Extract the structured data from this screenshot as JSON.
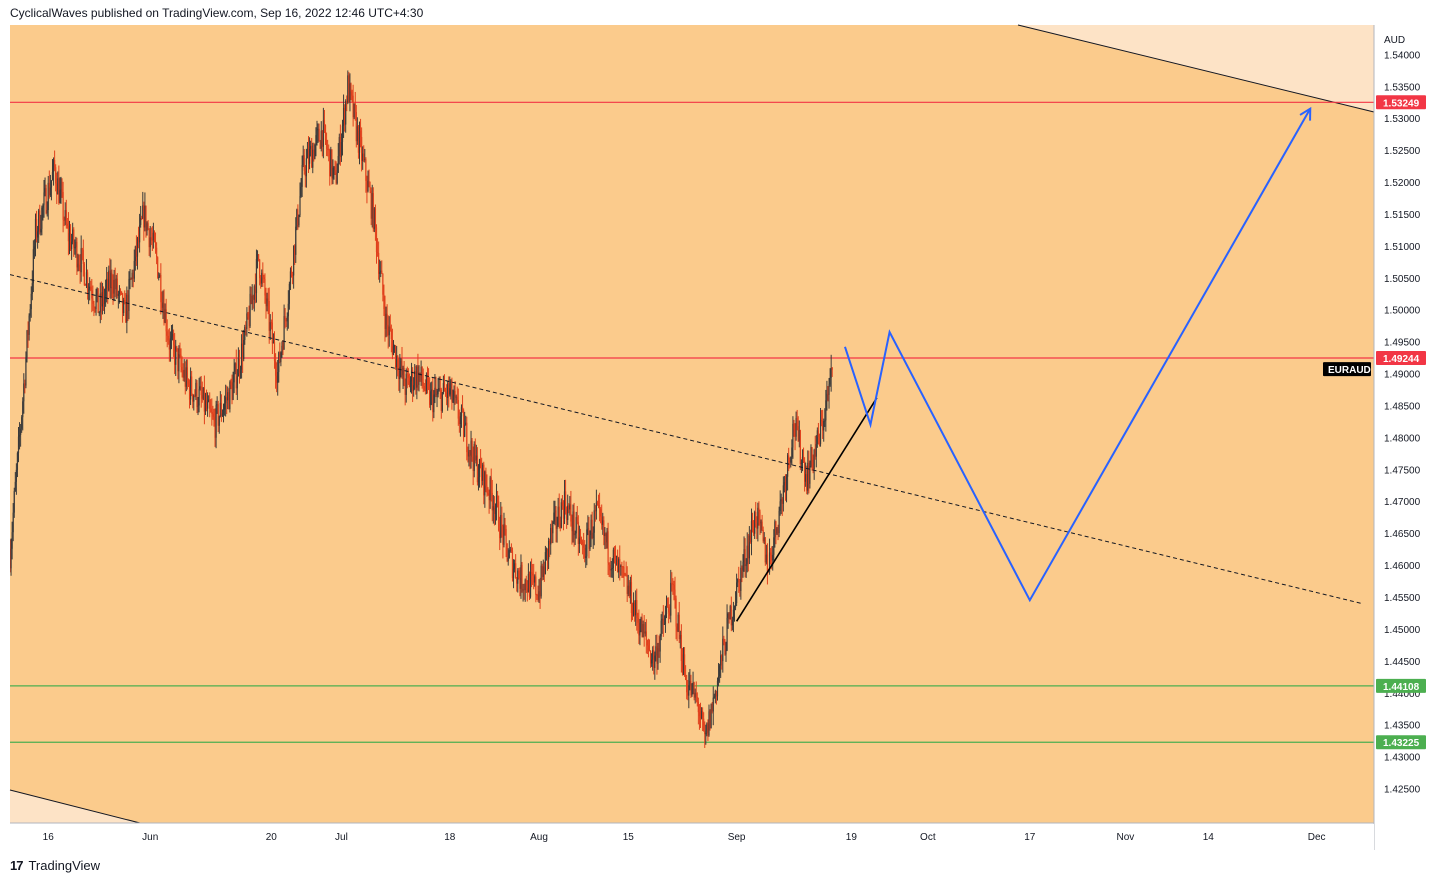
{
  "header": {
    "publisher": "CyclicalWaves published on TradingView.com, Sep 16, 2022 12:46 UTC+4:30"
  },
  "footer": {
    "brand": "TradingView"
  },
  "chart_data": {
    "type": "candlestick",
    "symbol": "EURAUD",
    "currency": "AUD",
    "y_ticks": [
      "1.54000",
      "1.53500",
      "1.53000",
      "1.52500",
      "1.52000",
      "1.51500",
      "1.51000",
      "1.50500",
      "1.50000",
      "1.49500",
      "1.49000",
      "1.48500",
      "1.48000",
      "1.47500",
      "1.47000",
      "1.46500",
      "1.46000",
      "1.45500",
      "1.45000",
      "1.44500",
      "1.44000",
      "1.43500",
      "1.43000",
      "1.42500"
    ],
    "ylim": [
      1.4196,
      1.5446
    ],
    "x_ticks": [
      {
        "label": "16",
        "date": "2022-05-16"
      },
      {
        "label": "Jun",
        "date": "2022-06-01"
      },
      {
        "label": "20",
        "date": "2022-06-20"
      },
      {
        "label": "Jul",
        "date": "2022-07-01"
      },
      {
        "label": "18",
        "date": "2022-07-18"
      },
      {
        "label": "Aug",
        "date": "2022-08-01"
      },
      {
        "label": "15",
        "date": "2022-08-15"
      },
      {
        "label": "Sep",
        "date": "2022-09-01"
      },
      {
        "label": "19",
        "date": "2022-09-19"
      },
      {
        "label": "Oct",
        "date": "2022-10-01"
      },
      {
        "label": "17",
        "date": "2022-10-17"
      },
      {
        "label": "Nov",
        "date": "2022-11-01"
      },
      {
        "label": "14",
        "date": "2022-11-14"
      },
      {
        "label": "Dec",
        "date": "2022-12-01"
      }
    ],
    "x_range": [
      "2022-05-10",
      "2022-12-10"
    ],
    "price_badges": [
      {
        "label": "1.53249",
        "value": 1.53249,
        "color": "#f23645"
      },
      {
        "label": "1.49244",
        "value": 1.49244,
        "color": "#f23645"
      },
      {
        "label": "1.44108",
        "value": 1.44108,
        "color": "#4caf50"
      },
      {
        "label": "1.43225",
        "value": 1.43225,
        "color": "#4caf50"
      }
    ],
    "symbol_badge": {
      "label": "EURAUD",
      "value": 1.4907,
      "color": "#000000"
    },
    "horizontal_lines": [
      {
        "value": 1.53249,
        "color": "#f23645"
      },
      {
        "value": 1.49244,
        "color": "#f23645"
      },
      {
        "value": 1.44108,
        "color": "#4caf50"
      },
      {
        "value": 1.43225,
        "color": "#4caf50"
      }
    ],
    "close_path": [
      [
        "2022-05-10",
        1.462
      ],
      [
        "2022-05-12",
        1.486
      ],
      [
        "2022-05-14",
        1.512
      ],
      [
        "2022-05-17",
        1.522
      ],
      [
        "2022-05-19",
        1.512
      ],
      [
        "2022-05-21",
        1.508
      ],
      [
        "2022-05-24",
        1.5
      ],
      [
        "2022-05-26",
        1.505
      ],
      [
        "2022-05-28",
        1.499
      ],
      [
        "2022-05-31",
        1.515
      ],
      [
        "2022-06-02",
        1.508
      ],
      [
        "2022-06-04",
        1.495
      ],
      [
        "2022-06-07",
        1.488
      ],
      [
        "2022-06-09",
        1.486
      ],
      [
        "2022-06-11",
        1.482
      ],
      [
        "2022-06-14",
        1.488
      ],
      [
        "2022-06-16",
        1.496
      ],
      [
        "2022-06-18",
        1.508
      ],
      [
        "2022-06-21",
        1.49
      ],
      [
        "2022-06-23",
        1.505
      ],
      [
        "2022-06-25",
        1.522
      ],
      [
        "2022-06-28",
        1.528
      ],
      [
        "2022-06-30",
        1.52
      ],
      [
        "2022-07-02",
        1.535
      ],
      [
        "2022-07-04",
        1.525
      ],
      [
        "2022-07-06",
        1.515
      ],
      [
        "2022-07-08",
        1.498
      ],
      [
        "2022-07-11",
        1.488
      ],
      [
        "2022-07-13",
        1.49
      ],
      [
        "2022-07-15",
        1.486
      ],
      [
        "2022-07-18",
        1.487
      ],
      [
        "2022-07-20",
        1.482
      ],
      [
        "2022-07-22",
        1.476
      ],
      [
        "2022-07-25",
        1.47
      ],
      [
        "2022-07-27",
        1.462
      ],
      [
        "2022-07-29",
        1.458
      ],
      [
        "2022-08-01",
        1.456
      ],
      [
        "2022-08-03",
        1.465
      ],
      [
        "2022-08-05",
        1.47
      ],
      [
        "2022-08-08",
        1.462
      ],
      [
        "2022-08-10",
        1.468
      ],
      [
        "2022-08-12",
        1.462
      ],
      [
        "2022-08-15",
        1.456
      ],
      [
        "2022-08-17",
        1.45
      ],
      [
        "2022-08-19",
        1.445
      ],
      [
        "2022-08-22",
        1.456
      ],
      [
        "2022-08-24",
        1.442
      ],
      [
        "2022-08-26",
        1.438
      ],
      [
        "2022-08-27",
        1.432
      ],
      [
        "2022-08-29",
        1.442
      ],
      [
        "2022-08-31",
        1.452
      ],
      [
        "2022-09-02",
        1.46
      ],
      [
        "2022-09-04",
        1.468
      ],
      [
        "2022-09-06",
        1.46
      ],
      [
        "2022-09-08",
        1.47
      ],
      [
        "2022-09-10",
        1.482
      ],
      [
        "2022-09-12",
        1.474
      ],
      [
        "2022-09-14",
        1.48
      ],
      [
        "2022-09-16",
        1.49
      ]
    ],
    "trend_lines": [
      {
        "from": [
          "2022-05-10",
          1.5055
        ],
        "to": [
          "2022-12-08",
          1.454
        ],
        "style": "dashed",
        "color": "#131722"
      },
      {
        "from": [
          "2022-05-26",
          1.418
        ],
        "to": [
          "2022-06-01",
          1.418
        ],
        "style": "solid",
        "color": "#131722"
      },
      {
        "from": [
          "2022-09-01",
          1.4512
        ],
        "to": [
          "2022-09-23",
          1.4862
        ],
        "style": "solid",
        "color": "#000000"
      }
    ],
    "projection_path": [
      [
        "2022-09-18",
        1.4942
      ],
      [
        "2022-09-22",
        1.482
      ],
      [
        "2022-09-25",
        1.4965
      ],
      [
        "2022-10-17",
        1.4545
      ],
      [
        "2022-11-30",
        1.5315
      ]
    ],
    "projection_color": "#2962ff",
    "background_color": "#fbcb8c"
  }
}
